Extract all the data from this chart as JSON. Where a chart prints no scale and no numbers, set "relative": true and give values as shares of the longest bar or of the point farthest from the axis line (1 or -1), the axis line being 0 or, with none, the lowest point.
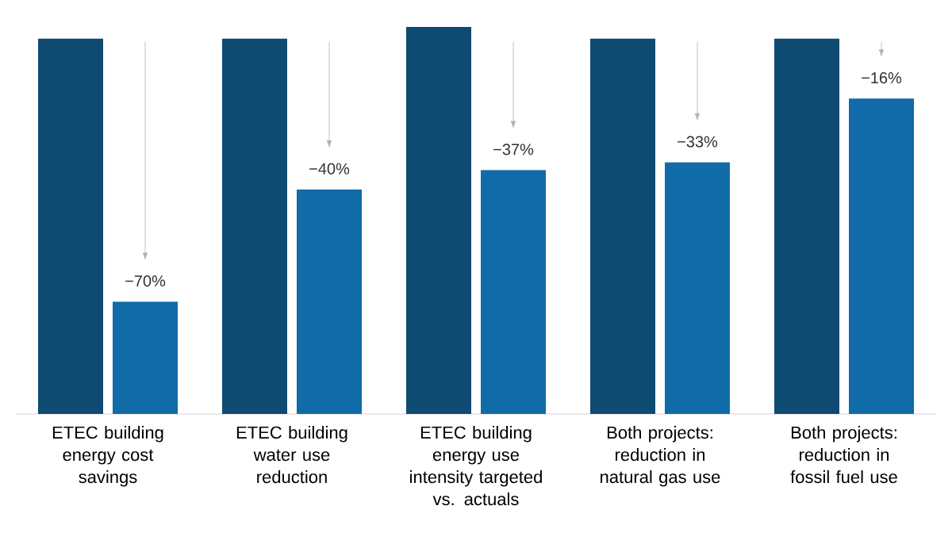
{
  "chart_data": {
    "type": "bar",
    "relative": true,
    "categories": [
      "ETEC building energy cost savings",
      "ETEC building water use reduction",
      "ETEC building energy use intensity targeted vs. actuals",
      "Both projects: reduction in natural gas use",
      "Both projects: reduction in fossil fuel use"
    ],
    "series": [
      {
        "color": "#0f4a73",
        "values": [
          0.97,
          0.97,
          1,
          0.97,
          0.97
        ]
      },
      {
        "color": "#106ba8",
        "values": [
          0.29,
          0.58,
          0.63,
          0.65,
          0.815
        ]
      }
    ],
    "annotations": [
      {
        "text": "−70%",
        "x": "ETEC building energy cost savings",
        "y": 0.29
      },
      {
        "text": "−40%",
        "x": "ETEC building water use reduction",
        "y": 0.58
      },
      {
        "text": "−37%",
        "x": "ETEC building energy use intensity targeted vs. actuals",
        "y": 0.63
      },
      {
        "text": "−33%",
        "x": "Both projects: reduction in natural gas use",
        "y": 0.65
      },
      {
        "text": "−16%",
        "x": "Both projects: reduction in fossil fuel use",
        "y": 0.815
      }
    ]
  }
}
